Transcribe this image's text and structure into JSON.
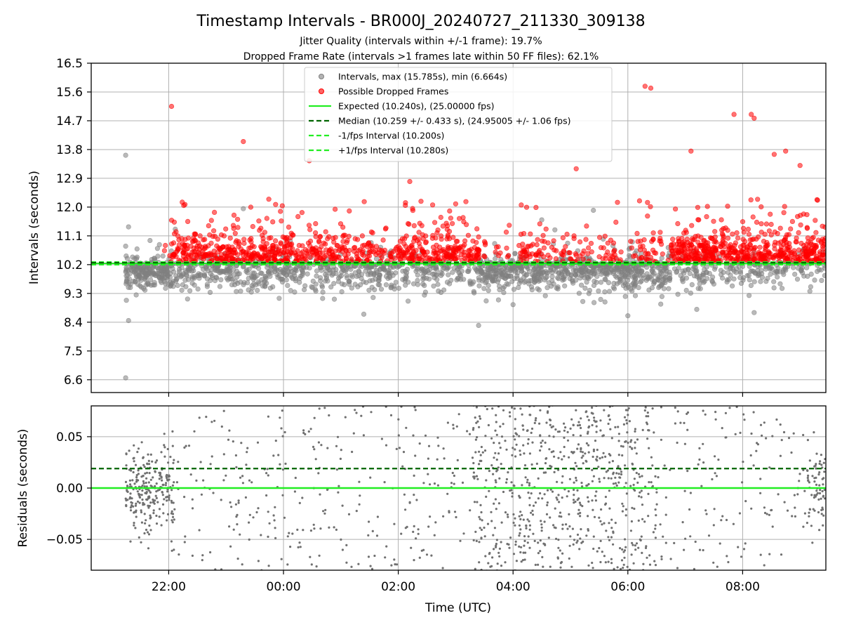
{
  "figure": {
    "title": "Timestamp Intervals - BR000J_20240727_211330_309138",
    "subtitle_1": "Jitter Quality (intervals within +/-1 frame): 19.7%",
    "subtitle_2": "Dropped Frame Rate (intervals >1 frames late within 50 FF files): 62.1%"
  },
  "colors": {
    "intervals": "#808080",
    "dropped": "#ff0000",
    "expected": "#22ee22",
    "median": "#006400",
    "fps_interval": "#22ee22",
    "grid": "#b0b0b0"
  },
  "chart_data": [
    {
      "type": "scatter",
      "panel": "intervals",
      "xlabel": "",
      "ylabel": "Intervals (seconds)",
      "x_unit": "hours since 00:00 UTC (negative = previous day)",
      "xlim": [
        -3.35,
        9.45
      ],
      "ylim": [
        6.2,
        16.5
      ],
      "yticks": [
        "6.6",
        "7.5",
        "8.4",
        "9.3",
        "10.2",
        "11.1",
        "12.0",
        "12.9",
        "13.8",
        "14.7",
        "15.6",
        "16.5"
      ],
      "grid": true,
      "legend_placement": "upper-center",
      "legend": [
        "Intervals, max (15.785s), min (6.664s)",
        "Possible Dropped Frames",
        "Expected (10.240s), (25.00000 fps)",
        "Median (10.259 +/- 0.433 s), (24.95005 +/- 1.06 fps)",
        "-1/fps Interval (10.200s)",
        "+1/fps Interval (10.280s)"
      ],
      "stats": {
        "max_interval": 15.785,
        "min_interval": 6.664,
        "expected_interval": 10.24,
        "expected_fps": 25.0,
        "median_interval": 10.259,
        "median_std": 0.433,
        "median_fps": 24.95005,
        "median_fps_std": 1.06,
        "minus_fps_interval": 10.2,
        "plus_fps_interval": 10.28
      },
      "series": [
        {
          "name": "Intervals, max (15.785s), min (6.664s)",
          "kind": "scatter",
          "approx_points": 3200,
          "sample_points": [
            [
              -2.75,
              13.62
            ],
            [
              -2.75,
              6.66
            ],
            [
              -2.7,
              8.45
            ],
            [
              -2.7,
              11.38
            ],
            [
              -0.7,
              11.95
            ],
            [
              1.4,
              8.65
            ],
            [
              2.8,
              10.1
            ],
            [
              3.4,
              8.3
            ],
            [
              4.0,
              8.95
            ],
            [
              4.5,
              11.6
            ],
            [
              5.4,
              11.9
            ],
            [
              6.0,
              8.6
            ],
            [
              7.2,
              8.8
            ],
            [
              8.2,
              8.7
            ],
            [
              9.4,
              10.6
            ]
          ]
        },
        {
          "name": "Possible Dropped Frames",
          "kind": "scatter",
          "approx_points": 1700,
          "sample_points": [
            [
              -1.95,
              15.15
            ],
            [
              -0.7,
              14.05
            ],
            [
              0.45,
              13.45
            ],
            [
              2.2,
              12.8
            ],
            [
              3.0,
              12.1
            ],
            [
              5.1,
              13.2
            ],
            [
              6.3,
              15.78
            ],
            [
              6.4,
              15.72
            ],
            [
              7.1,
              13.75
            ],
            [
              7.85,
              14.9
            ],
            [
              8.15,
              14.9
            ],
            [
              8.2,
              14.78
            ],
            [
              8.55,
              13.65
            ],
            [
              8.75,
              13.75
            ],
            [
              9.0,
              13.3
            ]
          ]
        },
        {
          "name": "Expected (10.240s), (25.00000 fps)",
          "kind": "hline",
          "y": 10.24
        },
        {
          "name": "Median (10.259 +/- 0.433 s), (24.95005 +/- 1.06 fps)",
          "kind": "hline",
          "y": 10.259
        },
        {
          "name": "-1/fps Interval (10.200s)",
          "kind": "hline",
          "y": 10.2
        },
        {
          "name": "+1/fps Interval (10.280s)",
          "kind": "hline",
          "y": 10.28
        }
      ]
    },
    {
      "type": "scatter",
      "panel": "residuals",
      "xlabel": "Time (UTC)",
      "ylabel": "Residuals (seconds)",
      "x_unit": "hours since 00:00 UTC (negative = previous day)",
      "xlim": [
        -3.35,
        9.45
      ],
      "ylim": [
        -0.08,
        0.08
      ],
      "yticks": [
        "−0.05",
        "0.00",
        "0.05"
      ],
      "ytick_values": [
        -0.05,
        0.0,
        0.05
      ],
      "xticks": [
        "22:00",
        "00:00",
        "02:00",
        "04:00",
        "06:00",
        "08:00"
      ],
      "xtick_values": [
        -2,
        0,
        2,
        4,
        6,
        8
      ],
      "grid": true,
      "series": [
        {
          "name": "residuals",
          "kind": "scatter",
          "approx_points": 1400
        },
        {
          "name": "median",
          "kind": "hline",
          "y": 0.019
        },
        {
          "name": "expected",
          "kind": "hline",
          "y": 0.0
        }
      ]
    }
  ]
}
